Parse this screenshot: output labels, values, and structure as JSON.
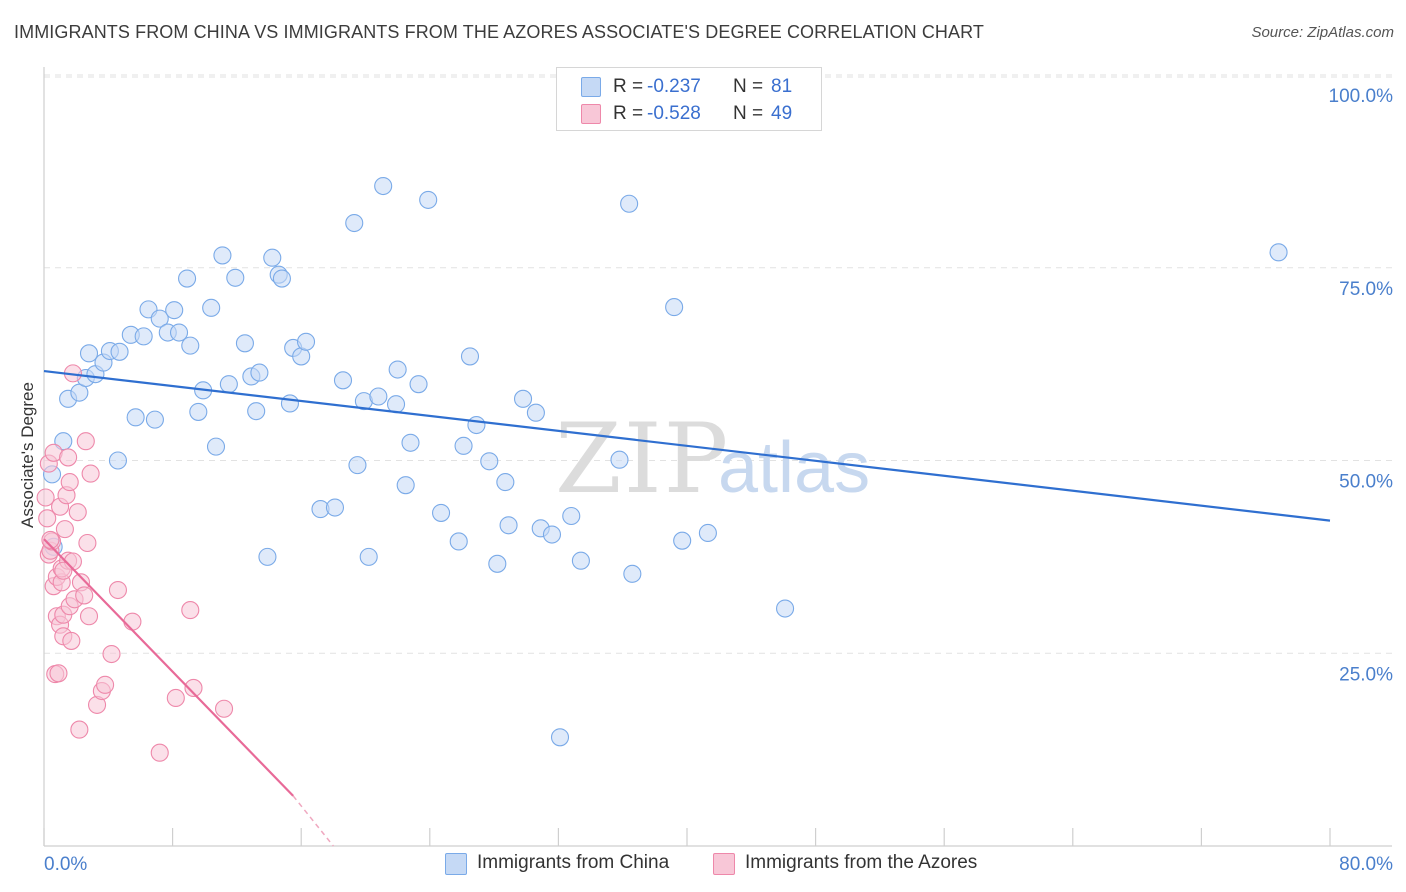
{
  "chart_data": {
    "type": "scatter",
    "title": "IMMIGRANTS FROM CHINA VS IMMIGRANTS FROM THE AZORES ASSOCIATE'S DEGREE CORRELATION CHART",
    "source": "Source: ZipAtlas.com",
    "xlabel": "",
    "ylabel": "Associate's Degree",
    "xlim": [
      0,
      80
    ],
    "ylim": [
      0,
      100
    ],
    "x_tick_labels": {
      "min": "0.0%",
      "max": "80.0%"
    },
    "y_ticks": [
      {
        "value": 100,
        "label": "100.0%"
      },
      {
        "value": 75,
        "label": "75.0%"
      },
      {
        "value": 50,
        "label": "50.0%"
      },
      {
        "value": 25,
        "label": "25.0%"
      }
    ],
    "grid": true,
    "watermark": "ZIPatlas",
    "series": [
      {
        "name": "Immigrants from China",
        "color": "#7aaae8",
        "fill": "#c5d9f5",
        "R": "-0.237",
        "N": "81",
        "points": [
          [
            0.5,
            48.2
          ],
          [
            0.6,
            38.8
          ],
          [
            1.2,
            52.5
          ],
          [
            1.5,
            58.0
          ],
          [
            2.2,
            58.8
          ],
          [
            2.6,
            60.7
          ],
          [
            2.8,
            63.9
          ],
          [
            3.2,
            61.2
          ],
          [
            3.7,
            62.7
          ],
          [
            4.1,
            64.2
          ],
          [
            4.7,
            64.1
          ],
          [
            4.6,
            50.0
          ],
          [
            5.4,
            66.3
          ],
          [
            5.7,
            55.6
          ],
          [
            6.2,
            66.1
          ],
          [
            6.5,
            69.6
          ],
          [
            6.9,
            55.3
          ],
          [
            7.2,
            68.4
          ],
          [
            7.7,
            66.6
          ],
          [
            8.1,
            69.5
          ],
          [
            8.4,
            66.6
          ],
          [
            8.9,
            73.6
          ],
          [
            9.1,
            64.9
          ],
          [
            9.6,
            56.3
          ],
          [
            9.9,
            59.1
          ],
          [
            10.4,
            69.8
          ],
          [
            10.7,
            51.8
          ],
          [
            11.1,
            76.6
          ],
          [
            11.5,
            59.9
          ],
          [
            11.9,
            73.7
          ],
          [
            12.5,
            65.2
          ],
          [
            12.9,
            60.9
          ],
          [
            13.2,
            56.4
          ],
          [
            13.4,
            61.4
          ],
          [
            13.9,
            37.5
          ],
          [
            14.2,
            76.3
          ],
          [
            14.6,
            74.1
          ],
          [
            14.8,
            73.6
          ],
          [
            15.3,
            57.4
          ],
          [
            15.5,
            64.6
          ],
          [
            16.0,
            63.5
          ],
          [
            16.3,
            65.4
          ],
          [
            17.2,
            43.7
          ],
          [
            18.1,
            43.9
          ],
          [
            18.6,
            60.4
          ],
          [
            19.3,
            80.8
          ],
          [
            19.5,
            49.4
          ],
          [
            19.9,
            57.7
          ],
          [
            20.2,
            37.5
          ],
          [
            20.8,
            58.3
          ],
          [
            21.1,
            85.6
          ],
          [
            21.9,
            57.3
          ],
          [
            22.0,
            61.8
          ],
          [
            22.5,
            46.8
          ],
          [
            22.8,
            52.3
          ],
          [
            23.3,
            59.9
          ],
          [
            23.9,
            83.8
          ],
          [
            24.7,
            43.2
          ],
          [
            25.8,
            39.5
          ],
          [
            26.1,
            51.9
          ],
          [
            26.5,
            63.5
          ],
          [
            26.9,
            54.6
          ],
          [
            27.7,
            49.9
          ],
          [
            28.2,
            36.6
          ],
          [
            28.7,
            47.2
          ],
          [
            28.9,
            41.6
          ],
          [
            29.8,
            58.0
          ],
          [
            30.6,
            56.2
          ],
          [
            30.9,
            41.2
          ],
          [
            31.6,
            40.4
          ],
          [
            32.1,
            14.1
          ],
          [
            32.8,
            42.8
          ],
          [
            35.8,
            50.1
          ],
          [
            36.4,
            83.3
          ],
          [
            36.6,
            35.3
          ],
          [
            39.2,
            69.9
          ],
          [
            39.7,
            39.6
          ],
          [
            41.3,
            40.6
          ],
          [
            46.1,
            30.8
          ],
          [
            76.8,
            77.0
          ],
          [
            33.4,
            37.0
          ]
        ],
        "trend": {
          "x": [
            0,
            80
          ],
          "y": [
            61.6,
            42.2
          ]
        }
      },
      {
        "name": "Immigrants from the Azores",
        "color": "#ee88aa",
        "fill": "#f8c7d7",
        "R": "-0.528",
        "N": "49",
        "points": [
          [
            0.1,
            45.2
          ],
          [
            0.2,
            42.5
          ],
          [
            0.3,
            37.8
          ],
          [
            0.3,
            49.6
          ],
          [
            0.4,
            38.3
          ],
          [
            0.5,
            39.5
          ],
          [
            0.6,
            51.0
          ],
          [
            0.6,
            33.7
          ],
          [
            0.7,
            22.3
          ],
          [
            0.8,
            34.9
          ],
          [
            0.8,
            29.8
          ],
          [
            0.9,
            22.4
          ],
          [
            1.0,
            44.0
          ],
          [
            1.0,
            28.7
          ],
          [
            1.1,
            34.2
          ],
          [
            1.1,
            36.0
          ],
          [
            1.2,
            27.2
          ],
          [
            1.2,
            30.0
          ],
          [
            1.3,
            41.1
          ],
          [
            1.4,
            45.5
          ],
          [
            1.5,
            50.4
          ],
          [
            1.5,
            37.0
          ],
          [
            1.6,
            47.2
          ],
          [
            1.6,
            31.1
          ],
          [
            1.7,
            26.6
          ],
          [
            1.8,
            61.3
          ],
          [
            1.8,
            36.9
          ],
          [
            1.9,
            32.0
          ],
          [
            2.1,
            43.3
          ],
          [
            2.2,
            15.1
          ],
          [
            2.3,
            34.2
          ],
          [
            2.5,
            32.5
          ],
          [
            2.6,
            52.5
          ],
          [
            2.7,
            39.3
          ],
          [
            2.8,
            29.8
          ],
          [
            2.9,
            48.3
          ],
          [
            3.3,
            18.3
          ],
          [
            3.6,
            20.1
          ],
          [
            3.8,
            20.9
          ],
          [
            4.2,
            24.9
          ],
          [
            4.6,
            33.2
          ],
          [
            5.5,
            29.1
          ],
          [
            7.2,
            12.1
          ],
          [
            8.2,
            19.2
          ],
          [
            9.1,
            30.6
          ],
          [
            9.3,
            20.5
          ],
          [
            11.2,
            17.8
          ],
          [
            0.4,
            39.7
          ],
          [
            1.2,
            35.7
          ]
        ],
        "trend": {
          "x": [
            0,
            15.5
          ],
          "y": [
            39.8,
            6.5
          ]
        },
        "trend_dashed": {
          "x": [
            15.5,
            18.0
          ],
          "y": [
            6.5,
            0.0
          ]
        }
      }
    ]
  },
  "legend": {
    "r_label": "R =",
    "n_label": "N =",
    "rows": [
      {
        "r": "-0.237",
        "n": "81"
      },
      {
        "r": "-0.528",
        "n": "49"
      }
    ]
  },
  "bottom_legend": [
    {
      "label": "Immigrants from China"
    },
    {
      "label": "Immigrants from the Azores"
    }
  ]
}
